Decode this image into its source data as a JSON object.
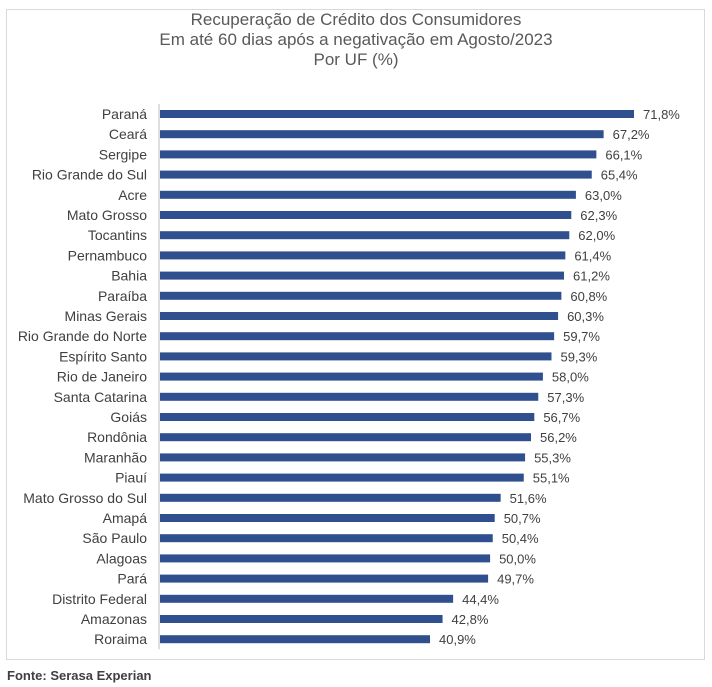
{
  "chart_data": {
    "type": "bar",
    "orientation": "horizontal",
    "title": [
      "Recuperação de Crédito dos Consumidores",
      "Em até 60 dias após a negativação em Agosto/2023",
      "Por UF (%)"
    ],
    "categories": [
      "Paraná",
      "Ceará",
      "Sergipe",
      "Rio Grande do Sul",
      "Acre",
      "Mato Grosso",
      "Tocantins",
      "Pernambuco",
      "Bahia",
      "Paraíba",
      "Minas Gerais",
      "Rio Grande do Norte",
      "Espírito Santo",
      "Rio de Janeiro",
      "Santa Catarina",
      "Goiás",
      "Rondônia",
      "Maranhão",
      "Piauí",
      "Mato Grosso do Sul",
      "Amapá",
      "São Paulo",
      "Alagoas",
      "Pará",
      "Distrito Federal",
      "Amazonas",
      "Roraima"
    ],
    "values": [
      71.8,
      67.2,
      66.1,
      65.4,
      63.0,
      62.3,
      62.0,
      61.4,
      61.2,
      60.8,
      60.3,
      59.7,
      59.3,
      58.0,
      57.3,
      56.7,
      56.2,
      55.3,
      55.1,
      51.6,
      50.7,
      50.4,
      50.0,
      49.7,
      44.4,
      42.8,
      40.9
    ],
    "value_labels": [
      "71,8%",
      "67,2%",
      "66,1%",
      "65,4%",
      "63,0%",
      "62,3%",
      "62,0%",
      "61,4%",
      "61,2%",
      "60,8%",
      "60,3%",
      "59,7%",
      "59,3%",
      "58,0%",
      "57,3%",
      "56,7%",
      "56,2%",
      "55,3%",
      "55,1%",
      "51,6%",
      "50,7%",
      "50,4%",
      "50,0%",
      "49,7%",
      "44,4%",
      "42,8%",
      "40,9%"
    ],
    "xlim": [
      0,
      80
    ],
    "grid": false,
    "legend": "none",
    "bar_color": "#2f4f8f"
  },
  "footer": {
    "source": "Fonte: Serasa Experian"
  }
}
